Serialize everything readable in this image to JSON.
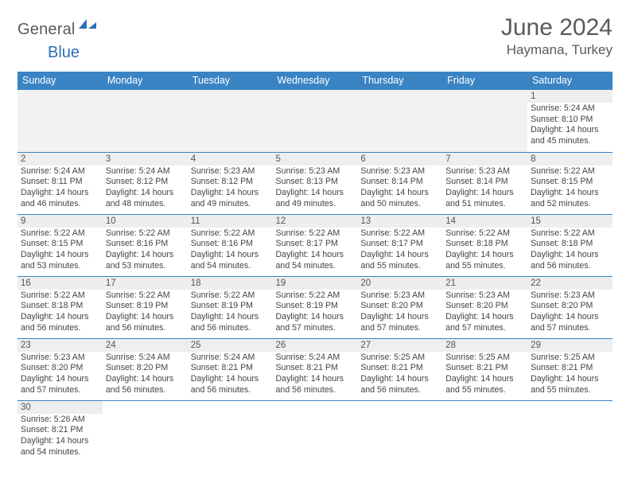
{
  "logo": {
    "word1": "General",
    "word2": "Blue",
    "accent_color": "#2d6fb5"
  },
  "title": "June 2024",
  "location": "Haymana, Turkey",
  "weekdays": [
    "Sunday",
    "Monday",
    "Tuesday",
    "Wednesday",
    "Thursday",
    "Friday",
    "Saturday"
  ],
  "colors": {
    "header_bg": "#3a84c4",
    "header_text": "#ffffff",
    "daynum_bg": "#eeeeee",
    "rule": "#3a84c4",
    "empty_bg": "#f2f2f2",
    "text": "#444444"
  },
  "grid": [
    [
      null,
      null,
      null,
      null,
      null,
      null,
      {
        "n": "1",
        "sunrise": "Sunrise: 5:24 AM",
        "sunset": "Sunset: 8:10 PM",
        "daylight": "Daylight: 14 hours and 45 minutes."
      }
    ],
    [
      {
        "n": "2",
        "sunrise": "Sunrise: 5:24 AM",
        "sunset": "Sunset: 8:11 PM",
        "daylight": "Daylight: 14 hours and 46 minutes."
      },
      {
        "n": "3",
        "sunrise": "Sunrise: 5:24 AM",
        "sunset": "Sunset: 8:12 PM",
        "daylight": "Daylight: 14 hours and 48 minutes."
      },
      {
        "n": "4",
        "sunrise": "Sunrise: 5:23 AM",
        "sunset": "Sunset: 8:12 PM",
        "daylight": "Daylight: 14 hours and 49 minutes."
      },
      {
        "n": "5",
        "sunrise": "Sunrise: 5:23 AM",
        "sunset": "Sunset: 8:13 PM",
        "daylight": "Daylight: 14 hours and 49 minutes."
      },
      {
        "n": "6",
        "sunrise": "Sunrise: 5:23 AM",
        "sunset": "Sunset: 8:14 PM",
        "daylight": "Daylight: 14 hours and 50 minutes."
      },
      {
        "n": "7",
        "sunrise": "Sunrise: 5:23 AM",
        "sunset": "Sunset: 8:14 PM",
        "daylight": "Daylight: 14 hours and 51 minutes."
      },
      {
        "n": "8",
        "sunrise": "Sunrise: 5:22 AM",
        "sunset": "Sunset: 8:15 PM",
        "daylight": "Daylight: 14 hours and 52 minutes."
      }
    ],
    [
      {
        "n": "9",
        "sunrise": "Sunrise: 5:22 AM",
        "sunset": "Sunset: 8:15 PM",
        "daylight": "Daylight: 14 hours and 53 minutes."
      },
      {
        "n": "10",
        "sunrise": "Sunrise: 5:22 AM",
        "sunset": "Sunset: 8:16 PM",
        "daylight": "Daylight: 14 hours and 53 minutes."
      },
      {
        "n": "11",
        "sunrise": "Sunrise: 5:22 AM",
        "sunset": "Sunset: 8:16 PM",
        "daylight": "Daylight: 14 hours and 54 minutes."
      },
      {
        "n": "12",
        "sunrise": "Sunrise: 5:22 AM",
        "sunset": "Sunset: 8:17 PM",
        "daylight": "Daylight: 14 hours and 54 minutes."
      },
      {
        "n": "13",
        "sunrise": "Sunrise: 5:22 AM",
        "sunset": "Sunset: 8:17 PM",
        "daylight": "Daylight: 14 hours and 55 minutes."
      },
      {
        "n": "14",
        "sunrise": "Sunrise: 5:22 AM",
        "sunset": "Sunset: 8:18 PM",
        "daylight": "Daylight: 14 hours and 55 minutes."
      },
      {
        "n": "15",
        "sunrise": "Sunrise: 5:22 AM",
        "sunset": "Sunset: 8:18 PM",
        "daylight": "Daylight: 14 hours and 56 minutes."
      }
    ],
    [
      {
        "n": "16",
        "sunrise": "Sunrise: 5:22 AM",
        "sunset": "Sunset: 8:18 PM",
        "daylight": "Daylight: 14 hours and 56 minutes."
      },
      {
        "n": "17",
        "sunrise": "Sunrise: 5:22 AM",
        "sunset": "Sunset: 8:19 PM",
        "daylight": "Daylight: 14 hours and 56 minutes."
      },
      {
        "n": "18",
        "sunrise": "Sunrise: 5:22 AM",
        "sunset": "Sunset: 8:19 PM",
        "daylight": "Daylight: 14 hours and 56 minutes."
      },
      {
        "n": "19",
        "sunrise": "Sunrise: 5:22 AM",
        "sunset": "Sunset: 8:19 PM",
        "daylight": "Daylight: 14 hours and 57 minutes."
      },
      {
        "n": "20",
        "sunrise": "Sunrise: 5:23 AM",
        "sunset": "Sunset: 8:20 PM",
        "daylight": "Daylight: 14 hours and 57 minutes."
      },
      {
        "n": "21",
        "sunrise": "Sunrise: 5:23 AM",
        "sunset": "Sunset: 8:20 PM",
        "daylight": "Daylight: 14 hours and 57 minutes."
      },
      {
        "n": "22",
        "sunrise": "Sunrise: 5:23 AM",
        "sunset": "Sunset: 8:20 PM",
        "daylight": "Daylight: 14 hours and 57 minutes."
      }
    ],
    [
      {
        "n": "23",
        "sunrise": "Sunrise: 5:23 AM",
        "sunset": "Sunset: 8:20 PM",
        "daylight": "Daylight: 14 hours and 57 minutes."
      },
      {
        "n": "24",
        "sunrise": "Sunrise: 5:24 AM",
        "sunset": "Sunset: 8:20 PM",
        "daylight": "Daylight: 14 hours and 56 minutes."
      },
      {
        "n": "25",
        "sunrise": "Sunrise: 5:24 AM",
        "sunset": "Sunset: 8:21 PM",
        "daylight": "Daylight: 14 hours and 56 minutes."
      },
      {
        "n": "26",
        "sunrise": "Sunrise: 5:24 AM",
        "sunset": "Sunset: 8:21 PM",
        "daylight": "Daylight: 14 hours and 56 minutes."
      },
      {
        "n": "27",
        "sunrise": "Sunrise: 5:25 AM",
        "sunset": "Sunset: 8:21 PM",
        "daylight": "Daylight: 14 hours and 56 minutes."
      },
      {
        "n": "28",
        "sunrise": "Sunrise: 5:25 AM",
        "sunset": "Sunset: 8:21 PM",
        "daylight": "Daylight: 14 hours and 55 minutes."
      },
      {
        "n": "29",
        "sunrise": "Sunrise: 5:25 AM",
        "sunset": "Sunset: 8:21 PM",
        "daylight": "Daylight: 14 hours and 55 minutes."
      }
    ],
    [
      {
        "n": "30",
        "sunrise": "Sunrise: 5:26 AM",
        "sunset": "Sunset: 8:21 PM",
        "daylight": "Daylight: 14 hours and 54 minutes."
      },
      null,
      null,
      null,
      null,
      null,
      null
    ]
  ]
}
